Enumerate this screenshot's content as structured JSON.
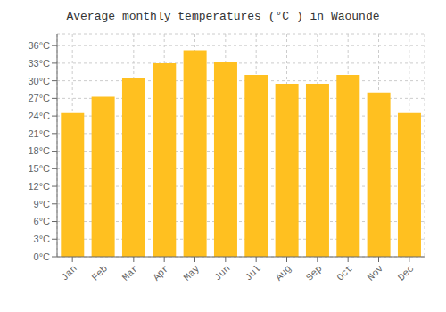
{
  "chart_data": {
    "type": "bar",
    "title": "Average monthly temperatures (°C ) in Waoundé",
    "categories": [
      "Jan",
      "Feb",
      "Mar",
      "Apr",
      "May",
      "Jun",
      "Jul",
      "Aug",
      "Sep",
      "Oct",
      "Nov",
      "Dec"
    ],
    "values": [
      24.5,
      27.3,
      30.5,
      33.0,
      35.2,
      33.2,
      31.0,
      29.5,
      29.5,
      31.0,
      28.0,
      24.5
    ],
    "color": "#FFC020",
    "ylim": [
      0,
      38
    ],
    "yticks": [
      {
        "value": 0,
        "label": "0°C"
      },
      {
        "value": 3,
        "label": "3°C"
      },
      {
        "value": 6,
        "label": "6°C"
      },
      {
        "value": 9,
        "label": "9°C"
      },
      {
        "value": 12,
        "label": "12°C"
      },
      {
        "value": 15,
        "label": "15°C"
      },
      {
        "value": 18,
        "label": "18°C"
      },
      {
        "value": 21,
        "label": "21°C"
      },
      {
        "value": 24,
        "label": "24°C"
      },
      {
        "value": 27,
        "label": "27°C"
      },
      {
        "value": 30,
        "label": "30°C"
      },
      {
        "value": 33,
        "label": "33°C"
      },
      {
        "value": 36,
        "label": "36°C"
      }
    ],
    "grid": true
  }
}
